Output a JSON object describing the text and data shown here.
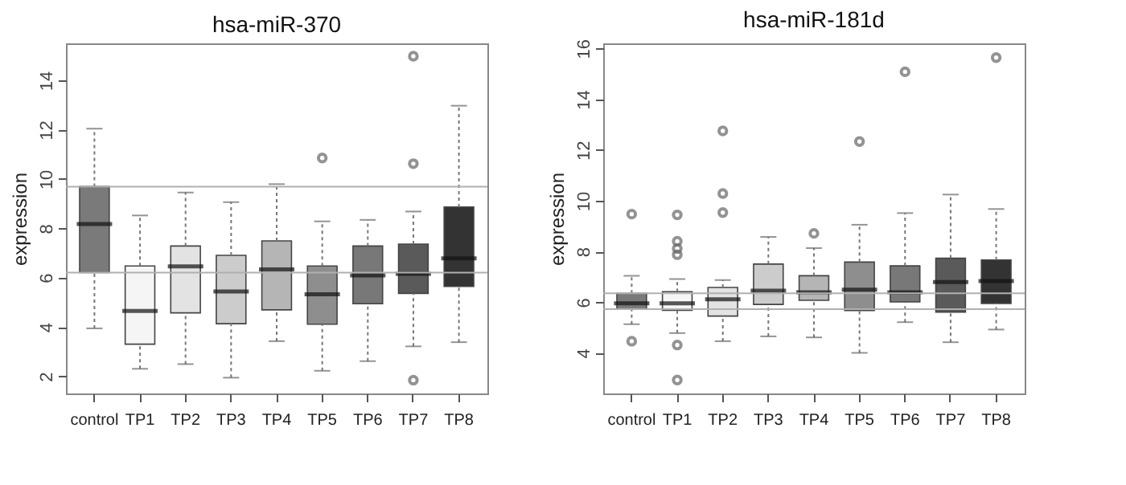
{
  "chart_data": [
    {
      "type": "box",
      "title": "hsa-miR-370",
      "ylabel": "expression",
      "categories": [
        "control",
        "TP1",
        "TP2",
        "TP3",
        "TP4",
        "TP5",
        "TP6",
        "TP7",
        "TP8"
      ],
      "colors": [
        "#7a7a7a",
        "#f5f5f5",
        "#e3e3e3",
        "#cccccc",
        "#b5b5b5",
        "#8e8e8e",
        "#787878",
        "#5a5a5a",
        "#333333"
      ],
      "boxes": [
        {
          "low": 3.94,
          "q1": 6.2,
          "median": 8.17,
          "q3": 9.69,
          "high": 12.04
        },
        {
          "low": 2.3,
          "q1": 3.3,
          "median": 4.65,
          "q3": 6.47,
          "high": 8.52
        },
        {
          "low": 2.49,
          "q1": 4.57,
          "median": 6.45,
          "q3": 7.28,
          "high": 9.45
        },
        {
          "low": 1.94,
          "q1": 4.13,
          "median": 5.44,
          "q3": 6.9,
          "high": 9.06
        },
        {
          "low": 3.42,
          "q1": 4.69,
          "median": 6.33,
          "q3": 7.49,
          "high": 9.79
        },
        {
          "low": 2.22,
          "q1": 4.11,
          "median": 5.32,
          "q3": 6.47,
          "high": 8.28,
          "outliers": [
            10.85
          ]
        },
        {
          "low": 2.61,
          "q1": 4.94,
          "median": 6.09,
          "q3": 7.28,
          "high": 8.34
        },
        {
          "low": 3.21,
          "q1": 5.36,
          "median": 6.15,
          "q3": 7.36,
          "high": 8.68,
          "outliers": [
            14.98,
            10.62,
            1.84
          ]
        },
        {
          "low": 3.38,
          "q1": 5.64,
          "median": 6.78,
          "q3": 8.86,
          "high": 12.97
        }
      ],
      "ylim": [
        1.3,
        15.5
      ],
      "yticks": [
        2,
        4,
        6,
        8,
        10,
        12,
        14
      ],
      "ref_lines": [
        {
          "axis": "y",
          "value": 9.69,
          "color": "#b0b0b0"
        },
        {
          "axis": "y",
          "value": 6.2,
          "color": "#b0b0b0"
        }
      ],
      "grid": false
    },
    {
      "type": "box",
      "title": "hsa-miR-181d",
      "ylabel": "expression",
      "categories": [
        "control",
        "TP1",
        "TP2",
        "TP3",
        "TP4",
        "TP5",
        "TP6",
        "TP7",
        "TP8"
      ],
      "colors": [
        "#7a7a7a",
        "#f5f5f5",
        "#e3e3e3",
        "#cccccc",
        "#b5b5b5",
        "#8e8e8e",
        "#787878",
        "#5a5a5a",
        "#333333"
      ],
      "boxes": [
        {
          "low": 5.13,
          "q1": 5.72,
          "median": 5.95,
          "q3": 6.35,
          "high": 7.04,
          "outliers": [
            9.47,
            4.46
          ]
        },
        {
          "low": 4.78,
          "q1": 5.68,
          "median": 5.95,
          "q3": 6.41,
          "high": 6.91,
          "outliers": [
            9.44,
            8.4,
            8.11,
            7.87,
            4.31,
            2.93
          ]
        },
        {
          "low": 4.46,
          "q1": 5.45,
          "median": 6.11,
          "q3": 6.58,
          "high": 6.87,
          "outliers": [
            12.75,
            10.28,
            9.53
          ]
        },
        {
          "low": 4.65,
          "q1": 5.91,
          "median": 6.45,
          "q3": 7.5,
          "high": 8.57
        },
        {
          "low": 4.61,
          "q1": 6.07,
          "median": 6.39,
          "q3": 7.04,
          "high": 8.13,
          "outliers": [
            8.71
          ]
        },
        {
          "low": 4.0,
          "q1": 5.67,
          "median": 6.49,
          "q3": 7.58,
          "high": 9.05,
          "outliers": [
            12.33
          ]
        },
        {
          "low": 5.21,
          "q1": 6.01,
          "median": 6.39,
          "q3": 7.43,
          "high": 9.51,
          "outliers": [
            15.08
          ]
        },
        {
          "low": 4.42,
          "q1": 5.61,
          "median": 6.79,
          "q3": 7.73,
          "high": 10.24
        },
        {
          "low": 4.92,
          "q1": 5.95,
          "median": 6.83,
          "q3": 7.66,
          "high": 9.67,
          "outliers": [
            15.64
          ]
        }
      ],
      "ylim": [
        2.4,
        16.2
      ],
      "yticks": [
        4,
        6,
        8,
        10,
        12,
        14,
        16
      ],
      "ref_lines": [
        {
          "axis": "y",
          "value": 6.35,
          "color": "#b0b0b0"
        },
        {
          "axis": "y",
          "value": 5.72,
          "color": "#b0b0b0"
        }
      ],
      "grid": false
    }
  ]
}
